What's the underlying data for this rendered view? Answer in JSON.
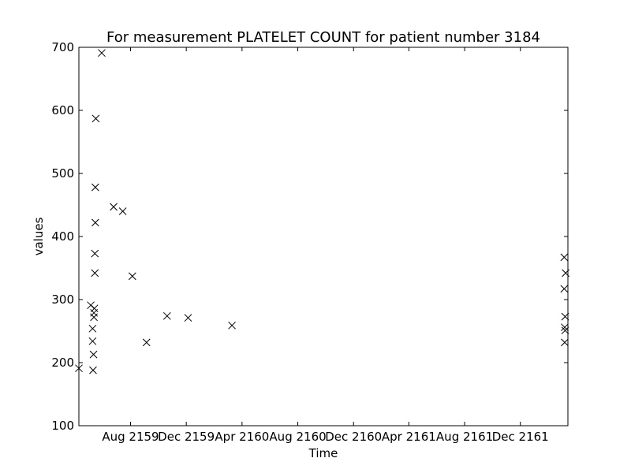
{
  "chart_data": {
    "type": "scatter",
    "title": "For measurement PLATELET COUNT for patient number 3184",
    "xlabel": "Time",
    "ylabel": "values",
    "ylim": [
      100,
      700
    ],
    "y_ticks": [
      100,
      200,
      300,
      400,
      500,
      600,
      700
    ],
    "xlim": [
      "2159-04-10",
      "2162-03-15"
    ],
    "x_ticks": [
      {
        "date": "2159-08-01",
        "label": "Aug 2159"
      },
      {
        "date": "2159-12-01",
        "label": "Dec 2159"
      },
      {
        "date": "2160-04-01",
        "label": "Apr 2160"
      },
      {
        "date": "2160-08-01",
        "label": "Aug 2160"
      },
      {
        "date": "2160-12-01",
        "label": "Dec 2160"
      },
      {
        "date": "2161-04-01",
        "label": "Apr 2161"
      },
      {
        "date": "2161-08-01",
        "label": "Aug 2161"
      },
      {
        "date": "2161-12-01",
        "label": "Dec 2161"
      }
    ],
    "marker": "x",
    "marker_color": "#000000",
    "grid": false,
    "points": [
      {
        "x": "2159-04-10",
        "y": 191
      },
      {
        "x": "2159-05-06",
        "y": 291
      },
      {
        "x": "2159-05-10",
        "y": 234
      },
      {
        "x": "2159-05-10",
        "y": 254
      },
      {
        "x": "2159-05-11",
        "y": 188
      },
      {
        "x": "2159-05-12",
        "y": 213
      },
      {
        "x": "2159-05-13",
        "y": 272
      },
      {
        "x": "2159-05-13",
        "y": 279
      },
      {
        "x": "2159-05-14",
        "y": 286
      },
      {
        "x": "2159-05-15",
        "y": 342
      },
      {
        "x": "2159-05-15",
        "y": 373
      },
      {
        "x": "2159-05-16",
        "y": 422
      },
      {
        "x": "2159-05-16",
        "y": 478
      },
      {
        "x": "2159-05-17",
        "y": 587
      },
      {
        "x": "2159-05-30",
        "y": 691
      },
      {
        "x": "2159-06-25",
        "y": 447
      },
      {
        "x": "2159-07-15",
        "y": 440
      },
      {
        "x": "2159-08-05",
        "y": 337
      },
      {
        "x": "2159-09-05",
        "y": 232
      },
      {
        "x": "2159-10-20",
        "y": 274
      },
      {
        "x": "2159-12-05",
        "y": 271
      },
      {
        "x": "2160-03-10",
        "y": 259
      },
      {
        "x": "2162-03-07",
        "y": 367
      },
      {
        "x": "2162-03-07",
        "y": 317
      },
      {
        "x": "2162-03-08",
        "y": 232
      },
      {
        "x": "2162-03-08",
        "y": 256
      },
      {
        "x": "2162-03-09",
        "y": 251
      },
      {
        "x": "2162-03-09",
        "y": 273
      },
      {
        "x": "2162-03-10",
        "y": 342
      }
    ]
  }
}
